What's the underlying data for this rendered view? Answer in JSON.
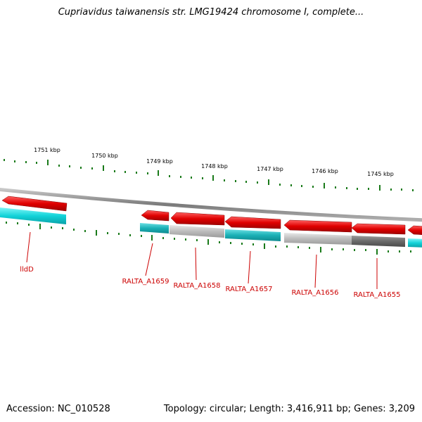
{
  "title": "Cupriavidus taiwanensis str. LMG19424 chromosome I, complete...",
  "accession": "Accession: NC_010528",
  "summary": "Topology: circular; Length: 3,416,911 bp; Genes: 3,209",
  "colors": {
    "backbone": "#8a8a8a",
    "tick": "#1a7a1a",
    "gene_forward": "#e00000",
    "cds_cyan": "#12d2d8",
    "cds_teal": "#1ab0b6",
    "cds_gray": "#b8b8b8",
    "cds_dark": "#6a6a6a",
    "label": "#cc0000"
  },
  "ruler_labels": [
    "1751 kbp",
    "1750 kbp",
    "1749 kbp",
    "1748 kbp",
    "1747 kbp",
    "1746 kbp",
    "1745 kbp"
  ],
  "gene_labels": [
    "lldD",
    "RALTA_A1659",
    "RALTA_A1658",
    "RALTA_A1657",
    "RALTA_A1656",
    "RALTA_A1655"
  ]
}
